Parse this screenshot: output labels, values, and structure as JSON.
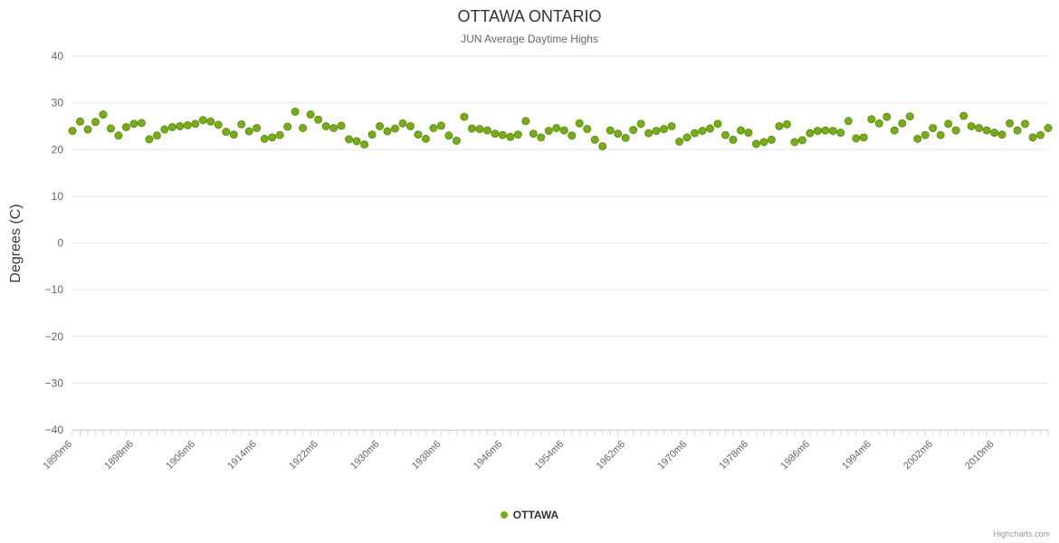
{
  "chart_data": {
    "type": "scatter",
    "title": "OTTAWA ONTARIO",
    "subtitle": "JUN Average Daytime Highs",
    "ylabel": "Degrees (C)",
    "ylim": [
      -40,
      40
    ],
    "y_ticks": [
      -40,
      -30,
      -20,
      -10,
      0,
      10,
      20,
      30,
      40
    ],
    "grid": true,
    "x_start_year": 1890,
    "x_label_suffix": "m6",
    "x_tick_interval": 8,
    "x_tick_labels": [
      "1890m6",
      "1898m6",
      "1906m6",
      "1914m6",
      "1922m6",
      "1930m6",
      "1938m6",
      "1946m6",
      "1954m6",
      "1962m6",
      "1970m6",
      "1978m6",
      "1986m6",
      "1994m6",
      "2002m6",
      "2010m6"
    ],
    "legend": {
      "position": "bottom"
    },
    "credit": "Highcharts.com",
    "colors": {
      "marker_fill": "#79AC1C",
      "marker_stroke": "#5F8F12",
      "grid_line": "#e6e6e6",
      "axis_line": "#ccd6eb",
      "tick_label": "#666666"
    },
    "series": [
      {
        "name": "OTTAWA",
        "color": "#79AC1C",
        "marker": "circle",
        "values": [
          24.0,
          26.0,
          24.3,
          25.9,
          27.5,
          24.5,
          23.0,
          24.8,
          25.5,
          25.7,
          22.2,
          23.0,
          24.3,
          24.8,
          25.0,
          25.2,
          25.5,
          26.3,
          26.0,
          25.3,
          23.8,
          23.2,
          25.4,
          23.9,
          24.6,
          22.3,
          22.6,
          23.1,
          24.9,
          28.1,
          24.6,
          27.5,
          26.4,
          25.0,
          24.6,
          25.1,
          22.2,
          21.8,
          21.1,
          23.2,
          25.0,
          23.9,
          24.5,
          25.6,
          25.0,
          23.2,
          22.3,
          24.6,
          25.1,
          23.0,
          21.9,
          27.0,
          24.5,
          24.4,
          24.1,
          23.4,
          23.1,
          22.7,
          23.2,
          26.1,
          23.4,
          22.6,
          24.0,
          24.6,
          24.1,
          23.0,
          25.6,
          24.4,
          22.1,
          20.7,
          24.1,
          23.4,
          22.5,
          24.2,
          25.5,
          23.5,
          24.0,
          24.4,
          25.0,
          21.7,
          22.6,
          23.5,
          24.0,
          24.5,
          25.5,
          23.1,
          22.1,
          24.1,
          23.6,
          21.2,
          21.6,
          22.1,
          25.0,
          25.4,
          21.6,
          22.0,
          23.5,
          24.0,
          24.1,
          24.0,
          23.6,
          26.1,
          22.4,
          22.6,
          26.5,
          25.6,
          27.0,
          24.1,
          25.6,
          27.1,
          22.3,
          23.1,
          24.6,
          23.1,
          25.5,
          24.1,
          27.2,
          25.0,
          24.6,
          24.1,
          23.6,
          23.2,
          25.6,
          24.1,
          25.5,
          22.6,
          23.1,
          24.6
        ]
      }
    ]
  }
}
